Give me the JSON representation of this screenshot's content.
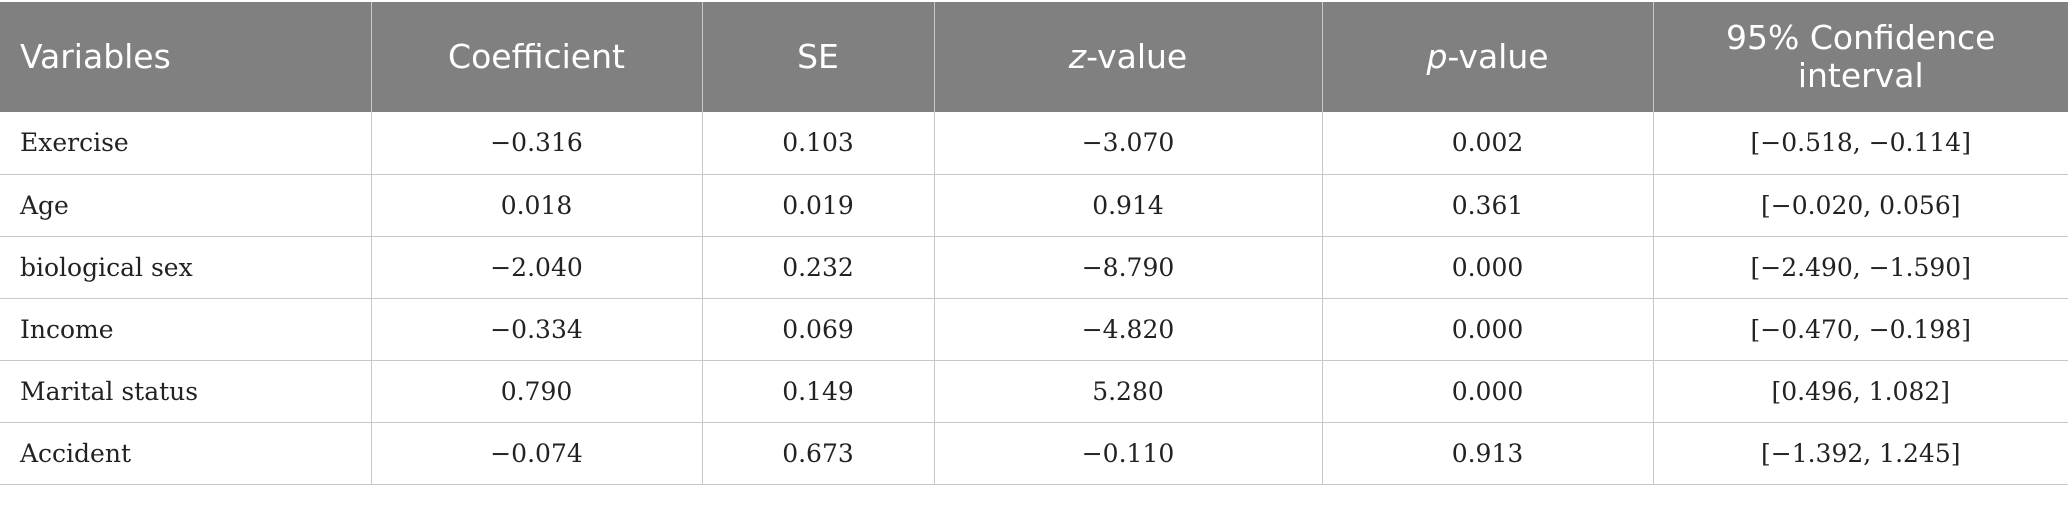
{
  "table": {
    "headers": [
      {
        "text": "Variables"
      },
      {
        "text": "Coefficient"
      },
      {
        "text": "SE"
      },
      {
        "prefix": "z",
        "suffix": "-value"
      },
      {
        "prefix": "p",
        "suffix": "-value"
      },
      {
        "text": "95% Confidence interval"
      }
    ],
    "rows": [
      [
        "Exercise",
        "−0.316",
        "0.103",
        "−3.070",
        "0.002",
        "[−0.518, −0.114]"
      ],
      [
        "Age",
        "0.018",
        "0.019",
        "0.914",
        "0.361",
        "[−0.020, 0.056]"
      ],
      [
        "biological sex",
        "−2.040",
        "0.232",
        "−8.790",
        "0.000",
        "[−2.490, −1.590]"
      ],
      [
        "Income",
        "−0.334",
        "0.069",
        "−4.820",
        "0.000",
        "[−0.470, −0.198]"
      ],
      [
        "Marital status",
        "0.790",
        "0.149",
        "5.280",
        "0.000",
        "[0.496, 1.082]"
      ],
      [
        "Accident",
        "−0.074",
        "0.673",
        "−0.110",
        "0.913",
        "[−1.392, 1.245]"
      ]
    ]
  },
  "colors": {
    "header_bg": "#808080",
    "header_text": "#ffffff",
    "grid_line": "#c8c8c8",
    "body_text": "#222222"
  }
}
